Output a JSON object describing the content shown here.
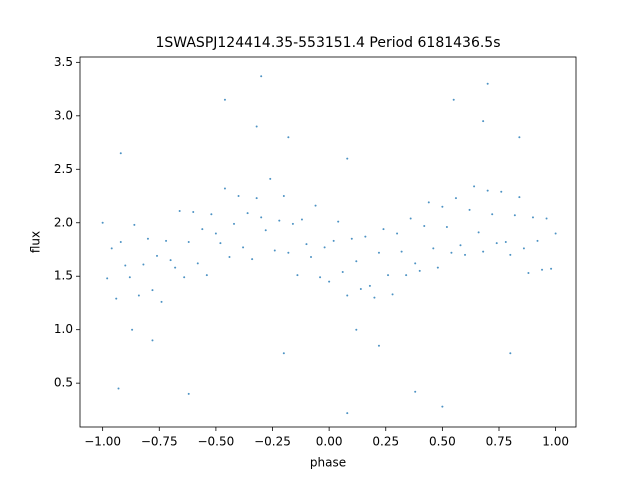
{
  "chart_data": {
    "type": "scatter",
    "title": "1SWASPJ124414.35-553151.4 Period 6181436.5s",
    "x_label": "phase",
    "y_label": "flux",
    "color": "#1f77b4",
    "xlim": [
      -1.1,
      1.09
    ],
    "ylim": [
      0.09,
      3.55
    ],
    "xticks": [
      {
        "value": -1,
        "label": "−1.00"
      },
      {
        "value": -0.75,
        "label": "−0.75"
      },
      {
        "value": -0.5,
        "label": "−0.50"
      },
      {
        "value": -0.25,
        "label": "−0.25"
      },
      {
        "value": 0,
        "label": "0.00"
      },
      {
        "value": 0.25,
        "label": "0.25"
      },
      {
        "value": 0.5,
        "label": "0.50"
      },
      {
        "value": 0.75,
        "label": "0.75"
      },
      {
        "value": 1,
        "label": "1.00"
      }
    ],
    "yticks": [
      0.5,
      {
        "value": 1,
        "label": "1.0"
      },
      1.5,
      {
        "value": 2,
        "label": "2.0"
      },
      2.5,
      {
        "value": 3,
        "label": "3.0"
      },
      3.5
    ],
    "x": [
      -1,
      -0.98,
      -0.96,
      -0.94,
      -0.92,
      -0.9,
      -0.88,
      -0.86,
      -0.84,
      -0.82,
      -0.8,
      -0.78,
      -0.76,
      -0.74,
      -0.72,
      -0.7,
      -0.68,
      -0.66,
      -0.64,
      -0.62,
      -0.6,
      -0.58,
      -0.56,
      -0.54,
      -0.52,
      -0.5,
      -0.48,
      -0.46,
      -0.44,
      -0.42,
      -0.4,
      -0.38,
      -0.36,
      -0.34,
      -0.32,
      -0.3,
      -0.28,
      -0.26,
      -0.24,
      -0.22,
      -0.2,
      -0.18,
      -0.16,
      -0.14,
      -0.12,
      -0.1,
      -0.08,
      -0.06,
      -0.04,
      -0.02,
      0,
      0.02,
      0.04,
      0.06,
      0.08,
      0.1,
      0.12,
      0.14,
      0.16,
      0.18,
      0.2,
      0.22,
      0.24,
      0.26,
      0.28,
      0.3,
      0.32,
      0.34,
      0.36,
      0.38,
      0.4,
      0.42,
      0.44,
      0.46,
      0.48,
      0.5,
      0.52,
      0.54,
      0.56,
      0.58,
      0.6,
      0.62,
      0.64,
      0.66,
      0.68,
      0.7,
      0.72,
      0.74,
      0.76,
      0.78,
      0.8,
      0.82,
      0.84,
      0.86,
      0.88,
      0.9,
      0.92,
      0.94,
      0.96,
      0.98,
      1,
      -0.93,
      -0.3,
      0.7,
      -0.46,
      0.55,
      0.08,
      0.5,
      -0.2,
      0.8,
      -0.62,
      0.38,
      -0.32,
      0.68,
      -0.18,
      0.84,
      -0.92,
      0.08,
      -0.87,
      0.12,
      -0.78,
      0.22
    ],
    "values": [
      2.0,
      1.48,
      1.76,
      1.29,
      1.82,
      1.6,
      1.49,
      1.98,
      1.32,
      1.61,
      1.85,
      1.37,
      1.69,
      1.26,
      1.83,
      1.65,
      1.58,
      2.11,
      1.49,
      1.82,
      2.1,
      1.62,
      1.94,
      1.51,
      2.08,
      1.9,
      1.81,
      2.32,
      1.68,
      1.99,
      2.25,
      1.77,
      2.09,
      1.66,
      2.23,
      2.05,
      1.93,
      2.41,
      1.74,
      2.02,
      2.25,
      1.72,
      1.99,
      1.51,
      2.03,
      1.8,
      1.68,
      2.16,
      1.49,
      1.77,
      1.45,
      1.83,
      2.01,
      1.54,
      1.32,
      1.85,
      1.64,
      1.38,
      1.87,
      1.41,
      1.3,
      1.72,
      1.94,
      1.51,
      1.33,
      1.9,
      1.73,
      1.51,
      2.04,
      1.62,
      1.55,
      1.97,
      2.19,
      1.76,
      1.58,
      2.15,
      1.96,
      1.72,
      2.23,
      1.79,
      1.7,
      2.12,
      2.34,
      1.91,
      1.73,
      2.3,
      2.08,
      1.81,
      2.29,
      1.82,
      1.7,
      2.07,
      2.24,
      1.76,
      1.53,
      2.05,
      1.83,
      1.56,
      2.04,
      1.57,
      1.9,
      0.45,
      3.37,
      3.3,
      3.15,
      3.15,
      0.22,
      0.28,
      0.78,
      0.78,
      0.4,
      0.42,
      2.9,
      2.95,
      2.8,
      2.8,
      2.65,
      2.6,
      1.0,
      1.0,
      0.9,
      0.85
    ]
  }
}
